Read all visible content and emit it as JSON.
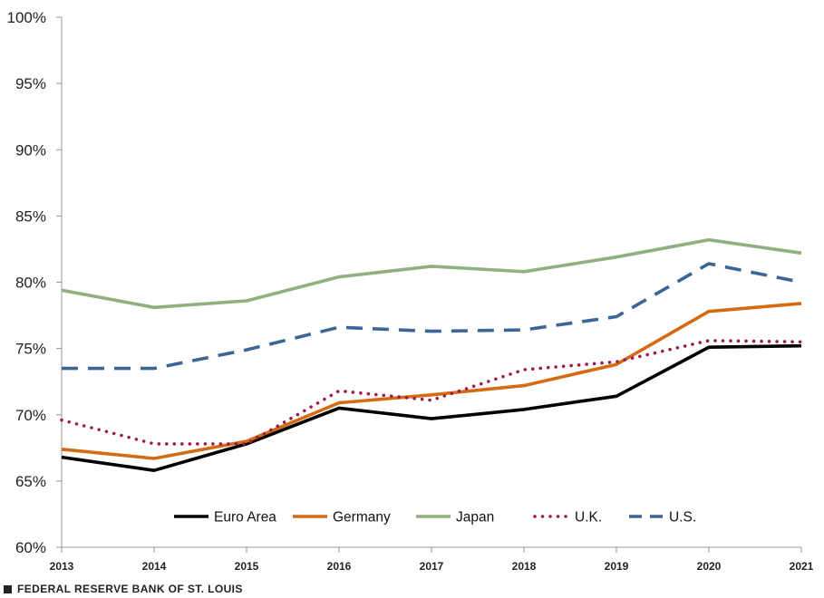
{
  "chart_data": {
    "type": "line",
    "title": "",
    "xlabel": "",
    "ylabel": "",
    "categories": [
      "2013",
      "2014",
      "2015",
      "2016",
      "2017",
      "2018",
      "2019",
      "2020",
      "2021"
    ],
    "ylim": [
      60,
      100
    ],
    "yticks": [
      60,
      65,
      70,
      75,
      80,
      85,
      90,
      95,
      100
    ],
    "ytick_labels": [
      "60%",
      "65%",
      "70%",
      "75%",
      "80%",
      "85%",
      "90%",
      "95%",
      "100%"
    ],
    "grid": false,
    "legend_position": "bottom-center (inside plot)",
    "series": [
      {
        "name": "Euro Area",
        "color": "#000000",
        "style": "solid",
        "values": [
          66.8,
          65.8,
          67.8,
          70.5,
          69.7,
          70.4,
          71.4,
          75.1,
          75.2
        ]
      },
      {
        "name": "Germany",
        "color": "#d46a12",
        "style": "solid",
        "values": [
          67.4,
          66.7,
          68.0,
          70.9,
          71.5,
          72.2,
          73.8,
          77.8,
          78.4
        ]
      },
      {
        "name": "Japan",
        "color": "#8fb07f",
        "style": "solid",
        "values": [
          79.4,
          78.1,
          78.6,
          80.4,
          81.2,
          80.8,
          81.9,
          83.2,
          82.2
        ]
      },
      {
        "name": "U.K.",
        "color": "#9b1c4b",
        "style": "dotted",
        "values": [
          69.6,
          67.8,
          67.8,
          71.8,
          71.1,
          73.4,
          74.0,
          75.6,
          75.5
        ]
      },
      {
        "name": "U.S.",
        "color": "#3b6594",
        "style": "dashed",
        "values": [
          73.5,
          73.5,
          74.9,
          76.6,
          76.3,
          76.4,
          77.4,
          81.4,
          80.0
        ]
      }
    ]
  },
  "footer": {
    "source": "FEDERAL RESERVE BANK OF ST. LOUIS"
  }
}
